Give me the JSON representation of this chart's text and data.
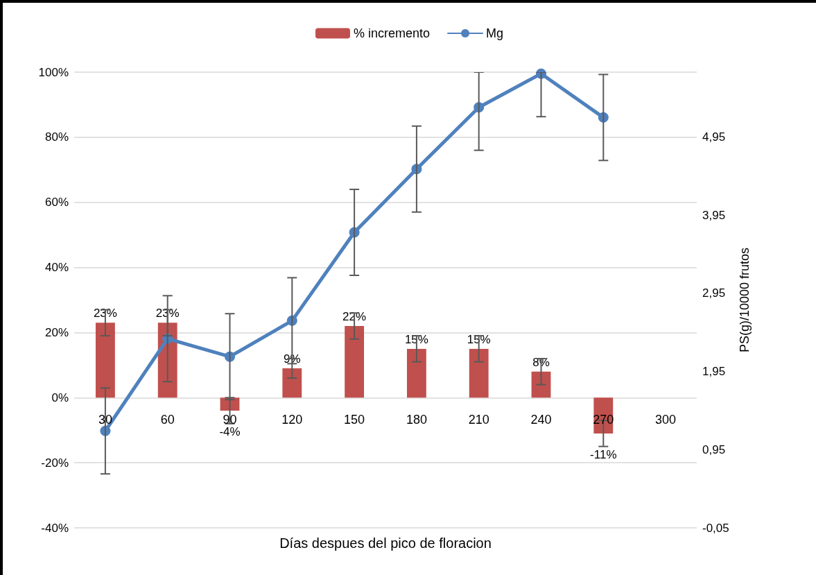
{
  "chart_data": {
    "type": "bar",
    "xlabel": "Días despues del pico de floracion",
    "y2label": "PS(g)/10000 frutos",
    "categories": [
      "30",
      "60",
      "90",
      "120",
      "150",
      "180",
      "210",
      "240",
      "270",
      "300"
    ],
    "series": [
      {
        "name": "% incremento",
        "color": "#c0504d",
        "values": [
          23,
          23,
          -4,
          9,
          22,
          15,
          15,
          8,
          -11,
          null
        ],
        "errors": [
          4,
          4,
          4,
          3,
          4,
          4,
          4,
          4,
          4,
          null
        ],
        "value_labels": [
          "23%",
          "23%",
          "-4%",
          "9%",
          "22%",
          "15%",
          "15%",
          "8%",
          "-11%",
          null
        ]
      },
      {
        "name": "Mg",
        "type": "line",
        "axis": "y2",
        "color": "#4f81bd",
        "marker": "circle",
        "values": [
          1.19,
          2.37,
          2.14,
          2.6,
          3.73,
          4.54,
          5.33,
          5.76,
          5.2,
          null
        ],
        "errors": [
          0.55,
          0.55,
          0.55,
          0.55,
          0.55,
          0.55,
          [
            4.78,
            5.78
          ],
          [
            5.21,
            5.78
          ],
          0.55,
          null
        ]
      }
    ],
    "ylim": [
      -40,
      100
    ],
    "yticks": [
      {
        "value": -40,
        "label": "-40%"
      },
      {
        "value": -20,
        "label": "-20%"
      },
      {
        "value": 0,
        "label": "0%"
      },
      {
        "value": 20,
        "label": "20%"
      },
      {
        "value": 40,
        "label": "40%"
      },
      {
        "value": 60,
        "label": "60%"
      },
      {
        "value": 80,
        "label": "80%"
      },
      {
        "value": 100,
        "label": "100%"
      }
    ],
    "y2lim": [
      -0.05,
      5.78
    ],
    "y2ticks": [
      {
        "value": -0.05,
        "label": "-0,05"
      },
      {
        "value": 0.95,
        "label": "0,95"
      },
      {
        "value": 1.95,
        "label": "1,95"
      },
      {
        "value": 2.95,
        "label": "2,95"
      },
      {
        "value": 3.95,
        "label": "3,95"
      },
      {
        "value": 4.95,
        "label": "4,95"
      }
    ],
    "grid": "y",
    "legend": "top"
  }
}
